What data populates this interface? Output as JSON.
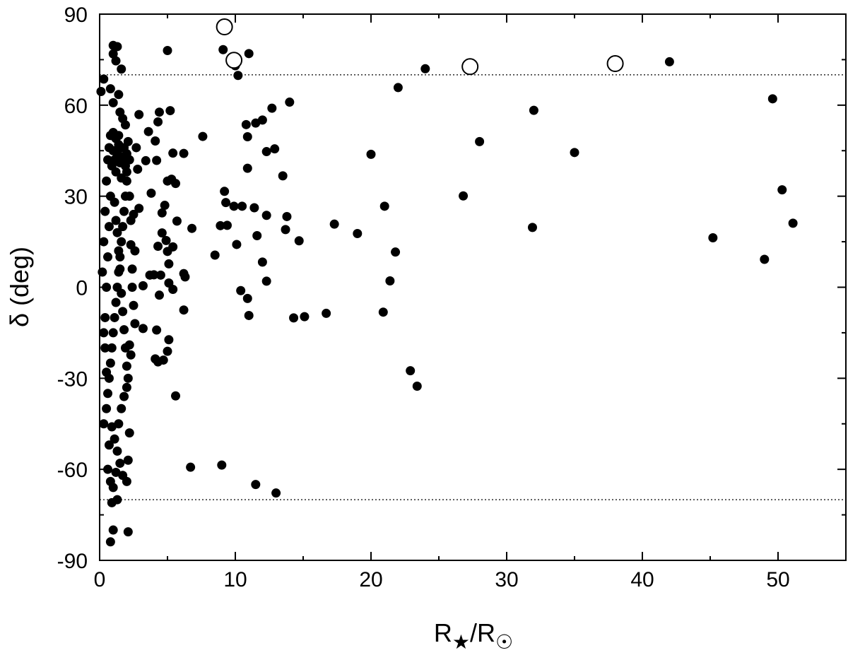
{
  "chart_data": {
    "type": "scatter",
    "xlabel": "R★/R☉",
    "xlabel_parts": {
      "base1": "R",
      "sub1": "★",
      "slash": "/R",
      "sub2": "☉"
    },
    "ylabel": "δ (deg)",
    "xlim": [
      0,
      55
    ],
    "ylim": [
      -90,
      90
    ],
    "xticks": [
      0,
      10,
      20,
      30,
      40,
      50
    ],
    "yticks": [
      -90,
      -60,
      -30,
      0,
      30,
      60,
      90
    ],
    "xtick_labels": [
      "0",
      "10",
      "20",
      "30",
      "40",
      "50"
    ],
    "ytick_labels": [
      "-90",
      "-60",
      "-30",
      "0",
      "30",
      "60",
      "90"
    ],
    "grid": false,
    "reference_lines": [
      70,
      -70
    ],
    "colors": {
      "filled": "#000000",
      "open_stroke": "#000000",
      "axis": "#000000"
    },
    "series": [
      {
        "marker": "filled-circle",
        "points": [
          [
            0.1,
            64.5
          ],
          [
            0.3,
            68.6
          ],
          [
            1.0,
            79.7
          ],
          [
            1.3,
            79.3
          ],
          [
            1.0,
            76.9
          ],
          [
            1.2,
            74.6
          ],
          [
            1.6,
            71.9
          ],
          [
            0.8,
            65.4
          ],
          [
            1.4,
            63.5
          ],
          [
            1.0,
            60.8
          ],
          [
            1.5,
            57.7
          ],
          [
            1.7,
            55.6
          ],
          [
            1.9,
            53.5
          ],
          [
            0.9,
            50.0
          ],
          [
            5.0,
            78.0
          ],
          [
            9.1,
            78.3
          ],
          [
            10.0,
            73.0
          ],
          [
            11.0,
            77.0
          ],
          [
            10.2,
            69.8
          ],
          [
            24.0,
            72.0
          ],
          [
            42.0,
            74.3
          ],
          [
            22.0,
            65.8
          ],
          [
            14.0,
            61.0
          ],
          [
            2.9,
            56.9
          ],
          [
            4.4,
            57.7
          ],
          [
            5.2,
            58.2
          ],
          [
            4.3,
            54.5
          ],
          [
            3.6,
            51.3
          ],
          [
            4.1,
            48.2
          ],
          [
            2.8,
            38.9
          ],
          [
            3.4,
            41.7
          ],
          [
            4.2,
            41.8
          ],
          [
            5.4,
            44.2
          ],
          [
            6.2,
            44.1
          ],
          [
            7.6,
            49.7
          ],
          [
            10.8,
            53.6
          ],
          [
            11.5,
            54.1
          ],
          [
            12.0,
            55.1
          ],
          [
            12.7,
            59.0
          ],
          [
            10.9,
            49.6
          ],
          [
            12.3,
            44.7
          ],
          [
            12.9,
            45.6
          ],
          [
            10.9,
            39.2
          ],
          [
            13.5,
            36.7
          ],
          [
            20.0,
            43.8
          ],
          [
            28.0,
            48.0
          ],
          [
            32.0,
            58.3
          ],
          [
            35.0,
            44.4
          ],
          [
            49.6,
            62.1
          ],
          [
            5.0,
            35.0
          ],
          [
            5.3,
            35.6
          ],
          [
            5.6,
            34.2
          ],
          [
            4.8,
            27.0
          ],
          [
            4.6,
            24.5
          ],
          [
            3.8,
            31.0
          ],
          [
            2.9,
            26.0
          ],
          [
            9.2,
            31.6
          ],
          [
            9.3,
            27.9
          ],
          [
            9.9,
            26.7
          ],
          [
            10.5,
            26.7
          ],
          [
            11.4,
            26.2
          ],
          [
            12.3,
            23.7
          ],
          [
            13.8,
            23.3
          ],
          [
            8.9,
            20.3
          ],
          [
            9.4,
            20.4
          ],
          [
            11.6,
            17.0
          ],
          [
            13.7,
            19.0
          ],
          [
            14.7,
            15.3
          ],
          [
            17.3,
            20.8
          ],
          [
            19.0,
            17.7
          ],
          [
            21.0,
            26.7
          ],
          [
            26.8,
            30.1
          ],
          [
            31.9,
            19.7
          ],
          [
            45.2,
            16.3
          ],
          [
            50.3,
            32.1
          ],
          [
            51.1,
            21.1
          ],
          [
            49.0,
            9.2
          ],
          [
            6.8,
            19.4
          ],
          [
            5.7,
            21.8
          ],
          [
            4.6,
            17.9
          ],
          [
            4.9,
            15.4
          ],
          [
            5.4,
            13.3
          ],
          [
            5.0,
            11.8
          ],
          [
            4.3,
            13.5
          ],
          [
            8.5,
            10.6
          ],
          [
            10.1,
            14.1
          ],
          [
            12.0,
            8.3
          ],
          [
            5.1,
            7.7
          ],
          [
            6.2,
            4.5
          ],
          [
            6.3,
            3.4
          ],
          [
            4.0,
            4.1
          ],
          [
            4.5,
            4.0
          ],
          [
            3.7,
            4.0
          ],
          [
            3.2,
            0.5
          ],
          [
            5.1,
            1.4
          ],
          [
            5.4,
            -0.7
          ],
          [
            12.3,
            2.0
          ],
          [
            21.4,
            2.1
          ],
          [
            21.8,
            11.6
          ],
          [
            10.4,
            -1.1
          ],
          [
            10.9,
            -3.7
          ],
          [
            14.3,
            -10.1
          ],
          [
            15.1,
            -9.7
          ],
          [
            16.7,
            -8.6
          ],
          [
            20.9,
            -8.2
          ],
          [
            11.0,
            -9.3
          ],
          [
            6.2,
            -7.5
          ],
          [
            4.4,
            -2.6
          ],
          [
            3.2,
            -13.6
          ],
          [
            4.2,
            -14.1
          ],
          [
            5.1,
            -17.3
          ],
          [
            5.0,
            -21.1
          ],
          [
            4.1,
            -23.6
          ],
          [
            4.3,
            -24.6
          ],
          [
            4.7,
            -24.0
          ],
          [
            2.2,
            -19.0
          ],
          [
            2.3,
            -22.3
          ],
          [
            5.6,
            -35.8
          ],
          [
            22.9,
            -27.5
          ],
          [
            23.4,
            -32.6
          ],
          [
            6.7,
            -59.3
          ],
          [
            9.0,
            -58.6
          ],
          [
            11.5,
            -65.0
          ],
          [
            13.0,
            -67.8
          ],
          [
            2.1,
            -80.6
          ],
          [
            0.8,
            -83.9
          ],
          [
            1.0,
            -80.0
          ],
          [
            0.9,
            -71.0
          ],
          [
            1.3,
            -70.0
          ],
          [
            0.3,
            -45.0
          ],
          [
            0.5,
            -40.0
          ],
          [
            0.6,
            -35.0
          ],
          [
            0.7,
            -30.0
          ],
          [
            0.8,
            -25.0
          ],
          [
            0.9,
            -20.0
          ],
          [
            1.0,
            -15.0
          ],
          [
            1.1,
            -10.0
          ],
          [
            1.2,
            -5.0
          ],
          [
            1.3,
            0.0
          ],
          [
            1.4,
            5.0
          ],
          [
            1.5,
            10.0
          ],
          [
            1.6,
            15.0
          ],
          [
            1.7,
            20.0
          ],
          [
            1.8,
            25.0
          ],
          [
            1.9,
            30.0
          ],
          [
            2.0,
            35.0
          ],
          [
            0.4,
            -10.0
          ],
          [
            0.5,
            0.0
          ],
          [
            0.6,
            10.0
          ],
          [
            0.7,
            20.0
          ],
          [
            0.8,
            30.0
          ],
          [
            0.9,
            40.0
          ],
          [
            1.0,
            45.0
          ],
          [
            1.1,
            42.0
          ],
          [
            1.2,
            38.0
          ],
          [
            1.3,
            44.0
          ],
          [
            1.4,
            47.0
          ],
          [
            1.5,
            41.0
          ],
          [
            1.6,
            36.0
          ],
          [
            1.7,
            43.0
          ],
          [
            1.8,
            46.0
          ],
          [
            1.9,
            40.0
          ],
          [
            2.0,
            44.0
          ],
          [
            2.1,
            48.0
          ],
          [
            2.2,
            42.0
          ],
          [
            1.1,
            28.0
          ],
          [
            1.2,
            22.0
          ],
          [
            1.3,
            18.0
          ],
          [
            1.4,
            12.0
          ],
          [
            1.5,
            6.0
          ],
          [
            1.6,
            -2.0
          ],
          [
            1.7,
            -8.0
          ],
          [
            1.8,
            -14.0
          ],
          [
            1.9,
            -20.0
          ],
          [
            2.0,
            -26.0
          ],
          [
            2.1,
            -30.0
          ],
          [
            2.2,
            -48.0
          ],
          [
            2.1,
            -57.0
          ],
          [
            2.0,
            -64.0
          ],
          [
            1.7,
            -62.0
          ],
          [
            1.5,
            -58.0
          ],
          [
            1.3,
            -54.0
          ],
          [
            1.1,
            -50.0
          ],
          [
            0.9,
            -46.0
          ],
          [
            0.7,
            -52.0
          ],
          [
            0.6,
            -60.0
          ],
          [
            0.8,
            -64.0
          ],
          [
            1.0,
            -66.0
          ],
          [
            1.2,
            -61.0
          ],
          [
            1.4,
            -45.0
          ],
          [
            1.6,
            -40.0
          ],
          [
            1.8,
            -36.0
          ],
          [
            2.0,
            -33.0
          ],
          [
            0.5,
            -28.0
          ],
          [
            0.4,
            -20.0
          ],
          [
            0.3,
            -15.0
          ],
          [
            0.2,
            5.0
          ],
          [
            0.3,
            15.0
          ],
          [
            0.4,
            25.0
          ],
          [
            0.5,
            35.0
          ],
          [
            0.6,
            42.0
          ],
          [
            0.7,
            46.0
          ],
          [
            0.8,
            50.0
          ],
          [
            1.0,
            51.0
          ],
          [
            1.2,
            49.0
          ],
          [
            1.4,
            50.0
          ],
          [
            1.6,
            46.0
          ],
          [
            1.8,
            41.0
          ],
          [
            2.0,
            38.0
          ],
          [
            2.2,
            30.0
          ],
          [
            2.3,
            22.0
          ],
          [
            2.3,
            14.0
          ],
          [
            2.4,
            6.0
          ],
          [
            2.4,
            0.0
          ],
          [
            2.5,
            -6.0
          ],
          [
            2.6,
            -12.0
          ],
          [
            2.6,
            12.0
          ],
          [
            2.7,
            46.0
          ],
          [
            2.5,
            24.0
          ]
        ]
      },
      {
        "marker": "open-circle",
        "points": [
          [
            9.2,
            85.8
          ],
          [
            9.9,
            74.8
          ],
          [
            27.3,
            72.7
          ],
          [
            38.0,
            73.7
          ]
        ]
      }
    ]
  }
}
